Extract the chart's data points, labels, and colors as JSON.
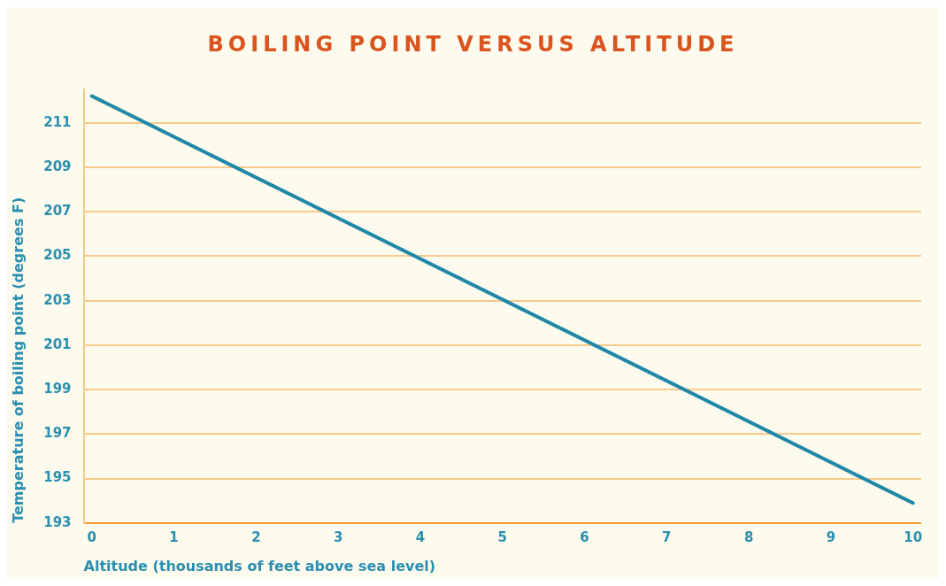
{
  "chart_data": {
    "type": "line",
    "title": "BOILING POINT VERSUS ALTITUDE",
    "xlabel": "Altitude (thousands of feet above sea level)",
    "ylabel": "Temperature of boiling point (degrees F)",
    "x": [
      0,
      10
    ],
    "series": [
      {
        "color": "#1f87a8",
        "values": [
          212.2,
          193.9
        ]
      }
    ],
    "xlim": [
      -0.1,
      10.1
    ],
    "xticks": [
      0,
      1,
      2,
      3,
      4,
      5,
      6,
      7,
      8,
      9,
      10
    ],
    "ylim": [
      193,
      212.5
    ],
    "yticks": [
      193,
      195,
      197,
      199,
      201,
      203,
      205,
      207,
      209,
      211
    ],
    "grid": "y",
    "legend": false,
    "marker": "none",
    "line_style": "solid"
  }
}
